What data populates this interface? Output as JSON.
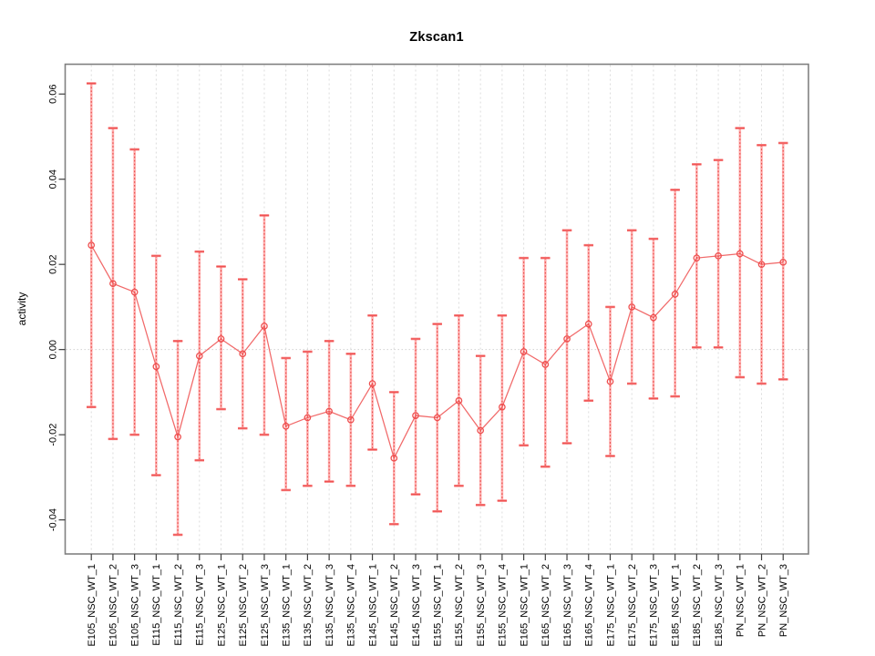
{
  "colors": {
    "marker_line": "#ee4f4f",
    "errorbar_fill": "#ffb1b1",
    "errorbar_dotted_overlay": "#e5403d",
    "errorbar_cap": "#f87f7f",
    "errorbar_cap_core": "#ee5050",
    "gridline": "#dcdcdc",
    "zero_line": "#d2d2d2",
    "plot_border": "#808080",
    "tick": "#3f3f3f",
    "label_text": "#000000"
  },
  "chart_data": {
    "type": "line",
    "title": "Zkscan1",
    "ylabel": "activity",
    "xlabel": "",
    "legend": "none",
    "grid": "vertical dashed gridlines at each category; dotted horizontal line at y=0",
    "marker": "open-circle",
    "error_bars": true,
    "ylim": [
      -0.048,
      0.067
    ],
    "yticks": [
      -0.04,
      -0.02,
      0.0,
      0.02,
      0.04,
      0.06
    ],
    "categories": [
      "E105_NSC_WT_1",
      "E105_NSC_WT_2",
      "E105_NSC_WT_3",
      "E115_NSC_WT_1",
      "E115_NSC_WT_2",
      "E115_NSC_WT_3",
      "E125_NSC_WT_1",
      "E125_NSC_WT_2",
      "E125_NSC_WT_3",
      "E135_NSC_WT_1",
      "E135_NSC_WT_2",
      "E135_NSC_WT_3",
      "E135_NSC_WT_4",
      "E145_NSC_WT_1",
      "E145_NSC_WT_2",
      "E145_NSC_WT_3",
      "E155_NSC_WT_1",
      "E155_NSC_WT_2",
      "E155_NSC_WT_3",
      "E155_NSC_WT_4",
      "E165_NSC_WT_1",
      "E165_NSC_WT_2",
      "E165_NSC_WT_3",
      "E165_NSC_WT_4",
      "E175_NSC_WT_1",
      "E175_NSC_WT_2",
      "E175_NSC_WT_3",
      "E185_NSC_WT_1",
      "E185_NSC_WT_2",
      "E185_NSC_WT_3",
      "PN_NSC_WT_1",
      "PN_NSC_WT_2",
      "PN_NSC_WT_3"
    ],
    "series": [
      {
        "name": "activity",
        "values": [
          0.0245,
          0.0155,
          0.0135,
          -0.004,
          -0.0205,
          -0.0015,
          0.0025,
          -0.001,
          0.0055,
          -0.018,
          -0.016,
          -0.0145,
          -0.0165,
          -0.008,
          -0.0255,
          -0.0155,
          -0.016,
          -0.012,
          -0.019,
          -0.0135,
          -0.0005,
          -0.0035,
          0.0025,
          0.006,
          -0.0075,
          0.01,
          0.0075,
          0.013,
          0.0215,
          0.022,
          0.0225,
          0.02,
          0.0205
        ],
        "error_upper": [
          0.0625,
          0.052,
          0.047,
          0.022,
          0.002,
          0.023,
          0.0195,
          0.0165,
          0.0315,
          -0.002,
          -0.0005,
          0.002,
          -0.001,
          0.008,
          -0.01,
          0.0025,
          0.006,
          0.008,
          -0.0015,
          0.008,
          0.0215,
          0.0215,
          0.028,
          0.0245,
          0.01,
          0.028,
          0.026,
          0.0375,
          0.0435,
          0.0445,
          0.052,
          0.048,
          0.0485
        ],
        "error_lower": [
          -0.0135,
          -0.021,
          -0.02,
          -0.0295,
          -0.0435,
          -0.026,
          -0.014,
          -0.0185,
          -0.02,
          -0.033,
          -0.032,
          -0.031,
          -0.032,
          -0.0235,
          -0.041,
          -0.034,
          -0.038,
          -0.032,
          -0.0365,
          -0.0355,
          -0.0225,
          -0.0275,
          -0.022,
          -0.012,
          -0.025,
          -0.008,
          -0.0115,
          -0.011,
          0.0005,
          0.0005,
          -0.0065,
          -0.008,
          -0.007
        ]
      }
    ]
  }
}
